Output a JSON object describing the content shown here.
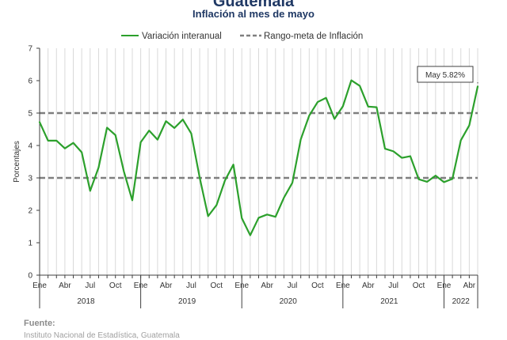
{
  "header": {
    "title": "Guatemala",
    "subtitle": "Inflación al mes de mayo"
  },
  "source": {
    "label": "Fuente:",
    "text": "Instituto Nacional de Estadística, Guatemala"
  },
  "colors": {
    "series": "#2ca02c",
    "target": "#7f7f7f",
    "axis": "#404040",
    "grid": "#d9d9d9"
  },
  "chart_data": {
    "type": "line",
    "title": "Guatemala",
    "subtitle": "Inflación al mes de mayo",
    "ylabel": "Porcentajes",
    "ylim": [
      0,
      7
    ],
    "yticks": [
      0,
      1,
      2,
      3,
      4,
      5,
      6,
      7
    ],
    "grid": "vertical",
    "legend_position": "top",
    "month_labels": [
      "Ene",
      "Abr",
      "Jul",
      "Oct"
    ],
    "years": [
      "2018",
      "2019",
      "2020",
      "2021",
      "2022"
    ],
    "x": [
      "2018-01",
      "2018-02",
      "2018-03",
      "2018-04",
      "2018-05",
      "2018-06",
      "2018-07",
      "2018-08",
      "2018-09",
      "2018-10",
      "2018-11",
      "2018-12",
      "2019-01",
      "2019-02",
      "2019-03",
      "2019-04",
      "2019-05",
      "2019-06",
      "2019-07",
      "2019-08",
      "2019-09",
      "2019-10",
      "2019-11",
      "2019-12",
      "2020-01",
      "2020-02",
      "2020-03",
      "2020-04",
      "2020-05",
      "2020-06",
      "2020-07",
      "2020-08",
      "2020-09",
      "2020-10",
      "2020-11",
      "2020-12",
      "2021-01",
      "2021-02",
      "2021-03",
      "2021-04",
      "2021-05",
      "2021-06",
      "2021-07",
      "2021-08",
      "2021-09",
      "2021-10",
      "2021-11",
      "2021-12",
      "2022-01",
      "2022-02",
      "2022-03",
      "2022-04",
      "2022-05"
    ],
    "series": [
      {
        "name": "Variación interanual",
        "values": [
          4.72,
          4.15,
          4.15,
          3.91,
          4.08,
          3.79,
          2.6,
          3.32,
          4.55,
          4.32,
          3.2,
          2.31,
          4.1,
          4.46,
          4.18,
          4.75,
          4.54,
          4.8,
          4.37,
          3.01,
          1.82,
          2.16,
          2.92,
          3.41,
          1.76,
          1.23,
          1.77,
          1.87,
          1.8,
          2.39,
          2.85,
          4.19,
          4.92,
          5.34,
          5.47,
          4.82,
          5.21,
          6.01,
          5.84,
          5.2,
          5.18,
          3.9,
          3.82,
          3.62,
          3.67,
          2.96,
          2.88,
          3.07,
          2.87,
          2.97,
          4.16,
          4.62,
          5.82
        ]
      },
      {
        "name": "Rango-meta de Inflación",
        "style": "dashed",
        "levels": [
          3,
          5
        ]
      }
    ],
    "annotations": [
      {
        "text": "May 5.82%",
        "x": "2022-05",
        "y": 5.82
      }
    ]
  }
}
